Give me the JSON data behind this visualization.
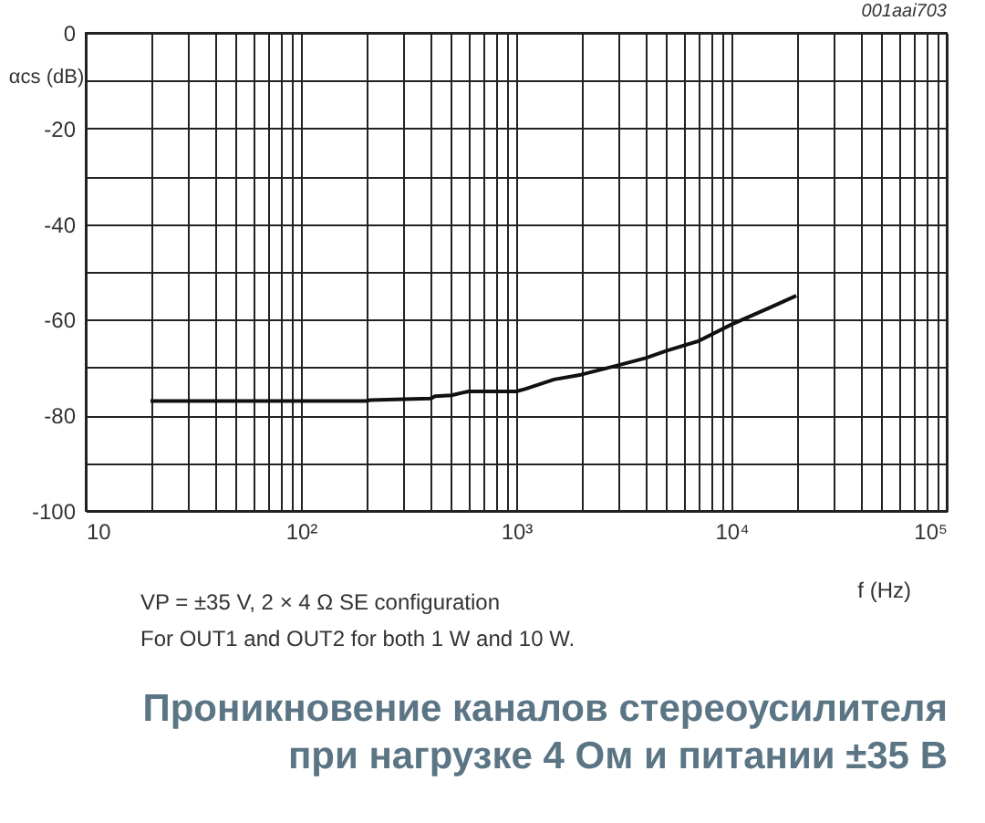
{
  "chart_data": {
    "type": "line",
    "title": "Проникновение каналов стереоусилителя\nпри нагрузке 4 Ом и питании ±35 В",
    "xlabel": "f (Hz)",
    "ylabel": "αcs (dB)",
    "annotations": [
      "001aai703",
      "VP = ±35 V, 2 × 4 Ω SE configuration",
      "For OUT1 and OUT2 for both 1 W and 10 W."
    ],
    "log": "x",
    "x": [
      20,
      200,
      210,
      400,
      420,
      500,
      600,
      1000,
      1100,
      1500,
      2000,
      3000,
      4000,
      5000,
      7000,
      10000,
      15000,
      20000
    ],
    "series": [
      {
        "color": "#111111",
        "values": [
          -77,
          -77,
          -76.8,
          -76.5,
          -76,
          -75.8,
          -75,
          -75,
          -74.5,
          -72.5,
          -71.5,
          -69.5,
          -68,
          -66.5,
          -64.5,
          -61,
          -57.5,
          -55
        ]
      }
    ],
    "xlim": [
      10,
      100000
    ],
    "xticks": [
      10,
      {
        "value": 20,
        "label": null
      },
      {
        "value": 30,
        "label": null
      },
      {
        "value": 40,
        "label": null
      },
      {
        "value": 50,
        "label": null
      },
      {
        "value": 60,
        "label": null
      },
      {
        "value": 70,
        "label": null
      },
      {
        "value": 80,
        "label": null
      },
      {
        "value": 90,
        "label": null
      },
      {
        "value": 100,
        "label": "10²"
      },
      {
        "value": 200,
        "label": null
      },
      {
        "value": 300,
        "label": null
      },
      {
        "value": 400,
        "label": null
      },
      {
        "value": 500,
        "label": null
      },
      {
        "value": 600,
        "label": null
      },
      {
        "value": 700,
        "label": null
      },
      {
        "value": 800,
        "label": null
      },
      {
        "value": 900,
        "label": null
      },
      {
        "value": 1000,
        "label": "10³"
      },
      {
        "value": 2000,
        "label": null
      },
      {
        "value": 3000,
        "label": null
      },
      {
        "value": 4000,
        "label": null
      },
      {
        "value": 5000,
        "label": null
      },
      {
        "value": 6000,
        "label": null
      },
      {
        "value": 7000,
        "label": null
      },
      {
        "value": 8000,
        "label": null
      },
      {
        "value": 9000,
        "label": null
      },
      {
        "value": 10000,
        "label": "10⁴"
      },
      {
        "value": 20000,
        "label": null
      },
      {
        "value": 30000,
        "label": null
      },
      {
        "value": 40000,
        "label": null
      },
      {
        "value": 50000,
        "label": null
      },
      {
        "value": 60000,
        "label": null
      },
      {
        "value": 70000,
        "label": null
      },
      {
        "value": 80000,
        "label": null
      },
      {
        "value": 90000,
        "label": null
      },
      {
        "value": 100000,
        "label": "10⁵"
      }
    ],
    "ylim": [
      -100,
      0
    ],
    "yticks": [
      -100,
      {
        "value": -90,
        "label": null
      },
      -80,
      {
        "value": -70,
        "label": null
      },
      -60,
      {
        "value": -50,
        "label": null
      },
      -40,
      {
        "value": -30,
        "label": null
      },
      -20,
      {
        "value": -10,
        "label": null
      },
      0
    ],
    "grid": true,
    "marker": "none",
    "line_style": "solid"
  }
}
